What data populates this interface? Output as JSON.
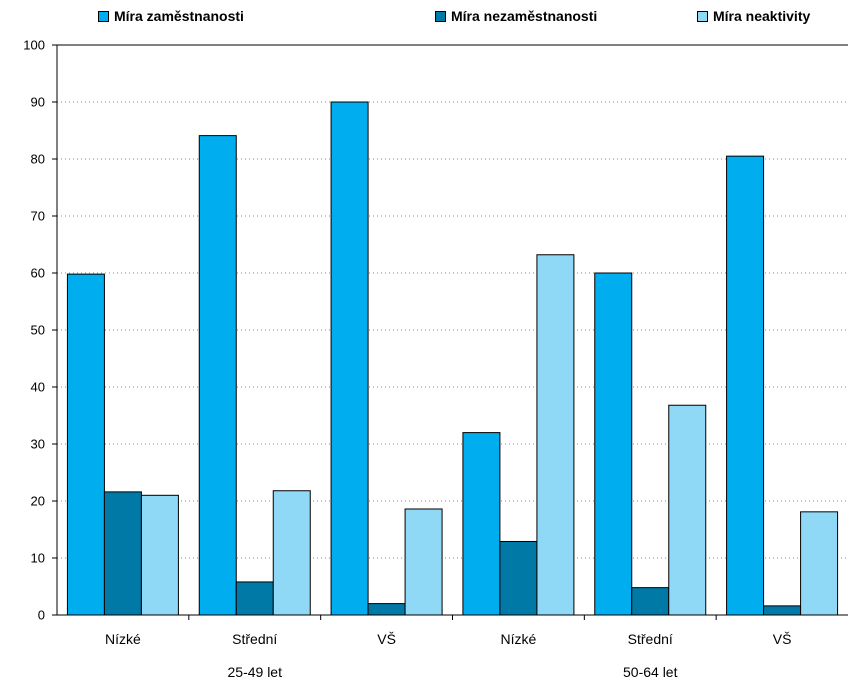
{
  "chart_data": {
    "type": "bar",
    "legend_position": "top",
    "grid": true,
    "ylim": [
      0,
      100
    ],
    "yticks": [
      0,
      10,
      20,
      30,
      40,
      50,
      60,
      70,
      80,
      90,
      100
    ],
    "yticklabels": [
      "0",
      "10",
      "20",
      "30",
      "40",
      "50",
      "60",
      "70",
      "80",
      "90",
      "100"
    ],
    "categories": [
      "Nízké",
      "Střední",
      "VŠ",
      "Nízké",
      "Střední",
      "VŠ"
    ],
    "groups": [
      {
        "label": "25-49 let",
        "categories": [
          "Nízké",
          "Střední",
          "VŠ"
        ]
      },
      {
        "label": "50-64 let",
        "categories": [
          "Nízké",
          "Střední",
          "VŠ"
        ]
      }
    ],
    "series": [
      {
        "name": "Míra zaměstnanosti",
        "color": "#00AEEF",
        "values": [
          59.8,
          84.1,
          90.0,
          32.0,
          60.0,
          80.5
        ]
      },
      {
        "name": "Míra nezaměstnanosti",
        "color": "#0079A6",
        "values": [
          21.6,
          5.8,
          2.0,
          12.9,
          4.8,
          1.6
        ]
      },
      {
        "name": "Míra neaktivity",
        "color": "#8FD8F6",
        "values": [
          21.0,
          21.8,
          18.6,
          63.2,
          36.8,
          18.1
        ]
      }
    ]
  }
}
